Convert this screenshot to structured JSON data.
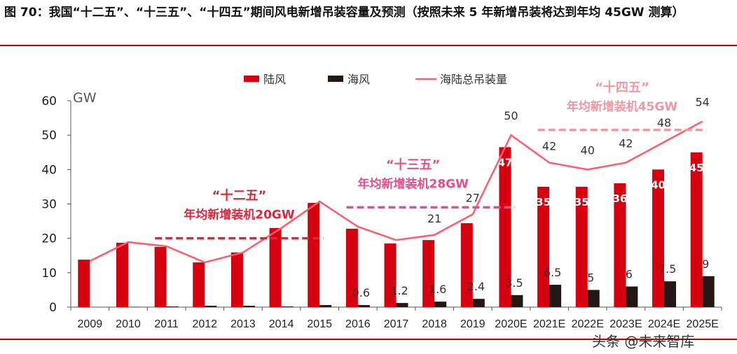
{
  "title": "图 70：我国“十二五”、“十三五”、“十四五”期间风电新增吊装容量及预测（按照未来 5 年新增吊装将达到年均 45GW 测算）",
  "watermark": "头条 @未来智库",
  "colors": {
    "land": "#d7000f",
    "offshore": "#231815",
    "total": "#ff5c6c",
    "p12": "#d7283c",
    "p13": "#e0508c",
    "p14": "#ec9aa4"
  },
  "chart_data": {
    "type": "bar",
    "ylabel": "GW",
    "ylim": [
      0,
      60
    ],
    "yticks": [
      0,
      10,
      20,
      30,
      40,
      50,
      60
    ],
    "categories": [
      "2009",
      "2010",
      "2011",
      "2012",
      "2013",
      "2014",
      "2015",
      "2016",
      "2017",
      "2018",
      "2019",
      "2020E",
      "2021E",
      "2022E",
      "2023E",
      "2024E",
      "2025E"
    ],
    "series": [
      {
        "name": "陆风",
        "type": "bar",
        "values": [
          13.8,
          18.7,
          17.5,
          13,
          15.9,
          23,
          30.3,
          22.8,
          18.5,
          19.5,
          24.4,
          46.5,
          35,
          35,
          36,
          40,
          45
        ],
        "labels": [
          null,
          null,
          null,
          null,
          null,
          null,
          null,
          null,
          null,
          null,
          null,
          "47",
          "35",
          "35",
          "36",
          "40",
          "45"
        ]
      },
      {
        "name": "海风",
        "type": "bar",
        "values": [
          0,
          0.1,
          0.2,
          0.4,
          0.4,
          0.2,
          0.6,
          0.6,
          1.2,
          1.6,
          2.4,
          3.5,
          6.5,
          5,
          6,
          7.5,
          9
        ],
        "labels": [
          null,
          null,
          null,
          null,
          null,
          null,
          null,
          "0.6",
          "1.2",
          "1.6",
          "2.4",
          "3.5",
          "6.5",
          "5",
          "6",
          "7.5",
          "9"
        ]
      },
      {
        "name": "海陆总吊装量",
        "type": "line",
        "values": [
          13.4,
          18.9,
          17.7,
          13,
          15.9,
          23,
          30.7,
          23.4,
          19.5,
          21,
          27,
          50,
          42,
          40,
          42,
          48,
          54
        ],
        "labels": [
          null,
          null,
          null,
          null,
          null,
          null,
          null,
          null,
          null,
          "21",
          "27",
          "50",
          "42",
          "40",
          "42",
          "48",
          "54"
        ]
      }
    ],
    "legend_position": "top",
    "annotations": [
      {
        "title": "“十二五”",
        "text": "年均新增装机20GW",
        "value": 20,
        "from": "2011",
        "to": "2015"
      },
      {
        "title": "“十三五”",
        "text": "年均新增装机28GW",
        "value": 29,
        "from": "2016",
        "to": "2020E"
      },
      {
        "title": "“十四五”",
        "text": "年均新增装机45GW",
        "value": 51.5,
        "from": "2021E",
        "to": "2025E"
      }
    ]
  }
}
